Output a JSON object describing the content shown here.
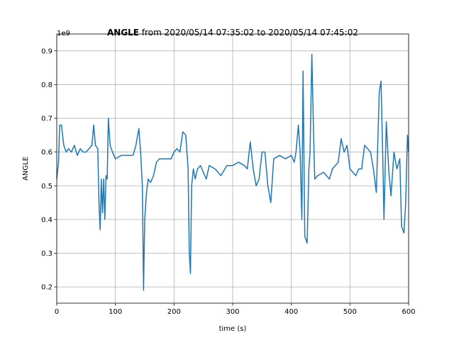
{
  "chart_data": {
    "type": "line",
    "title_bold": "ANGLE",
    "title_rest": " from 2020/05/14 07:35:02 to 2020/05/14 07:45:02",
    "offset_label": "1e9",
    "xlabel": "time (s)",
    "ylabel": "ANGLE",
    "color": "#1f77b4",
    "grid": true,
    "xlim": [
      0,
      600
    ],
    "ylim": [
      0.152,
      0.95
    ],
    "xticks": [
      0,
      100,
      200,
      300,
      400,
      500,
      600
    ],
    "yticks": [
      0.2,
      0.3,
      0.4,
      0.5,
      0.6,
      0.7,
      0.8,
      0.9
    ],
    "x": [
      0,
      3,
      5,
      8,
      12,
      16,
      20,
      25,
      30,
      35,
      40,
      45,
      50,
      55,
      60,
      63,
      66,
      70,
      72,
      74,
      76,
      78,
      80,
      82,
      84,
      86,
      88,
      91,
      95,
      100,
      110,
      120,
      130,
      135,
      140,
      143,
      146,
      148,
      150,
      153,
      156,
      160,
      165,
      170,
      175,
      185,
      195,
      200,
      205,
      210,
      215,
      220,
      224,
      226,
      228,
      230,
      233,
      236,
      240,
      245,
      250,
      255,
      260,
      270,
      280,
      290,
      300,
      310,
      320,
      325,
      330,
      335,
      340,
      345,
      350,
      355,
      360,
      365,
      370,
      380,
      390,
      400,
      405,
      408,
      412,
      415,
      418,
      420,
      423,
      427,
      430,
      432,
      435,
      438,
      440,
      445,
      455,
      465,
      470,
      480,
      485,
      490,
      495,
      500,
      505,
      510,
      515,
      520,
      525,
      530,
      535,
      540,
      545,
      550,
      553,
      556,
      558,
      562,
      566,
      570,
      575,
      580,
      585,
      588,
      592,
      595,
      598,
      600
    ],
    "values": [
      0.52,
      0.57,
      0.68,
      0.68,
      0.62,
      0.6,
      0.61,
      0.6,
      0.62,
      0.59,
      0.61,
      0.6,
      0.6,
      0.61,
      0.62,
      0.68,
      0.62,
      0.61,
      0.45,
      0.37,
      0.52,
      0.42,
      0.52,
      0.4,
      0.53,
      0.52,
      0.7,
      0.62,
      0.6,
      0.58,
      0.59,
      0.59,
      0.59,
      0.62,
      0.67,
      0.6,
      0.5,
      0.19,
      0.4,
      0.48,
      0.52,
      0.51,
      0.53,
      0.57,
      0.58,
      0.58,
      0.58,
      0.6,
      0.61,
      0.6,
      0.66,
      0.65,
      0.55,
      0.3,
      0.24,
      0.5,
      0.55,
      0.52,
      0.55,
      0.56,
      0.54,
      0.52,
      0.56,
      0.55,
      0.53,
      0.56,
      0.56,
      0.57,
      0.56,
      0.55,
      0.63,
      0.55,
      0.5,
      0.52,
      0.6,
      0.6,
      0.5,
      0.45,
      0.58,
      0.59,
      0.58,
      0.59,
      0.57,
      0.6,
      0.68,
      0.6,
      0.4,
      0.84,
      0.35,
      0.33,
      0.55,
      0.6,
      0.89,
      0.65,
      0.52,
      0.53,
      0.54,
      0.52,
      0.55,
      0.57,
      0.64,
      0.6,
      0.62,
      0.55,
      0.54,
      0.53,
      0.55,
      0.55,
      0.62,
      0.61,
      0.6,
      0.55,
      0.48,
      0.78,
      0.81,
      0.58,
      0.4,
      0.69,
      0.55,
      0.47,
      0.6,
      0.55,
      0.58,
      0.38,
      0.36,
      0.45,
      0.65,
      0.6
    ]
  }
}
